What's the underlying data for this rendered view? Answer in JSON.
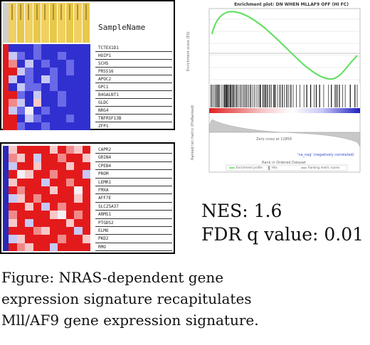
{
  "top_heatmap": {
    "column_header": "SampleName",
    "genes": [
      "TCTEX1D1",
      "HOIP1",
      "SCHS",
      "PRSS16",
      "APOC2",
      "GPC1",
      "B4GALNT1",
      "GLDC",
      "NRG4",
      "TNFRSF13B",
      "ZFP1"
    ]
  },
  "bottom_heatmap": {
    "genes": [
      "CAPR2",
      "GRIN4",
      "CPEB4",
      "PROM",
      "LEMR1",
      "FMXA",
      "AFF7E",
      "SLC25A37",
      "ARMS1",
      "PTGDS2",
      "ELMO",
      "PKD2",
      "RMO"
    ]
  },
  "gsea": {
    "title": "Enrichment plot: DN WHEN MLLAF9 OFF (HI FC)",
    "y_axis_label": "Enrichment score (ES)",
    "ranked_axis_label": "Ranked list metric (PreRanked)",
    "x_axis_label": "Rank in Ordered Dataset",
    "zero_cross_label": "Zero cross at 12856",
    "neg_label": "'na_neg' (negatively correlated)",
    "legend": [
      "Enrichment profile",
      "Hits",
      "Ranking metric scores"
    ],
    "colors": {
      "curve": "#66e066",
      "hits": "#111111"
    }
  },
  "stats": {
    "nes": "NES: 1.6",
    "fdr": "FDR q value: 0.01"
  },
  "caption": {
    "line1": "Figure: NRAS-dependent gene",
    "line2": "expression signature recapitulates",
    "line3": "Mll/AF9 gene expression signature."
  }
}
